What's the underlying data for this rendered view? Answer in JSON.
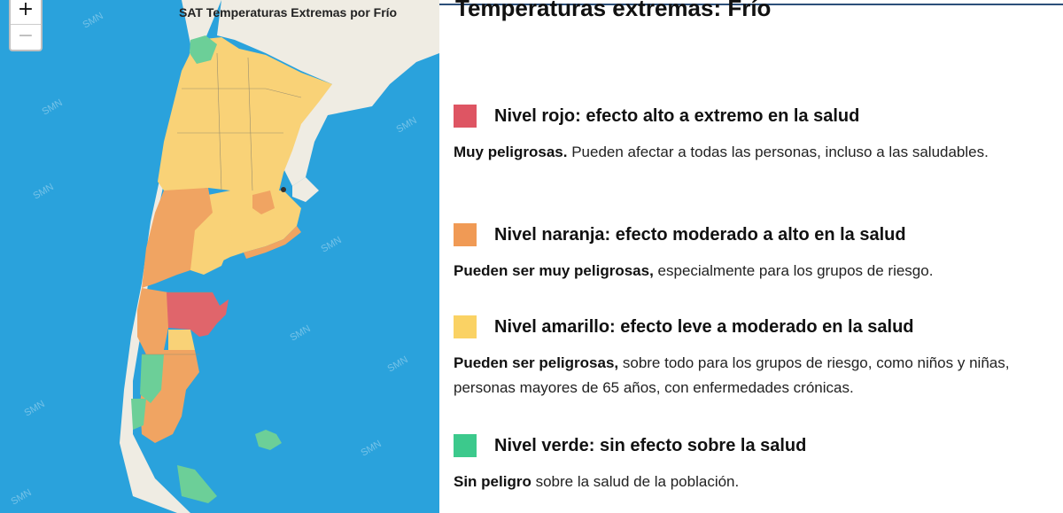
{
  "map": {
    "title": "SAT Temperaturas Extremas por Frío",
    "zoom_in": "+",
    "zoom_out": "−",
    "watermark": "SMN",
    "colors": {
      "sea": "#2aa2dc",
      "land": "#efece3",
      "rojo": "#e0656b",
      "naranja": "#f0a462",
      "amarillo": "#f9d277",
      "verde": "#6ccf98"
    }
  },
  "legend": {
    "title": "Temperaturas extremas: Frío",
    "levels": [
      {
        "color": "#de5563",
        "title": "Nivel rojo: efecto alto a extremo en la salud",
        "bold": "Muy peligrosas.",
        "text": " Pueden afectar a todas las personas, incluso a las saludables."
      },
      {
        "color": "#f09a55",
        "title": "Nivel naranja: efecto moderado a alto en la salud",
        "bold": "Pueden ser muy peligrosas,",
        "text": " especialmente para los grupos de riesgo."
      },
      {
        "color": "#fad264",
        "title": "Nivel amarillo: efecto leve a moderado en la salud",
        "bold": "Pueden ser peligrosas,",
        "text": " sobre todo para los grupos de riesgo, como niños y niñas, personas mayores de 65 años, con enfermedades crónicas."
      },
      {
        "color": "#3cc98c",
        "title": "Nivel verde: sin efecto sobre la salud",
        "bold": "Sin peligro",
        "text": " sobre la salud de la población."
      }
    ]
  }
}
